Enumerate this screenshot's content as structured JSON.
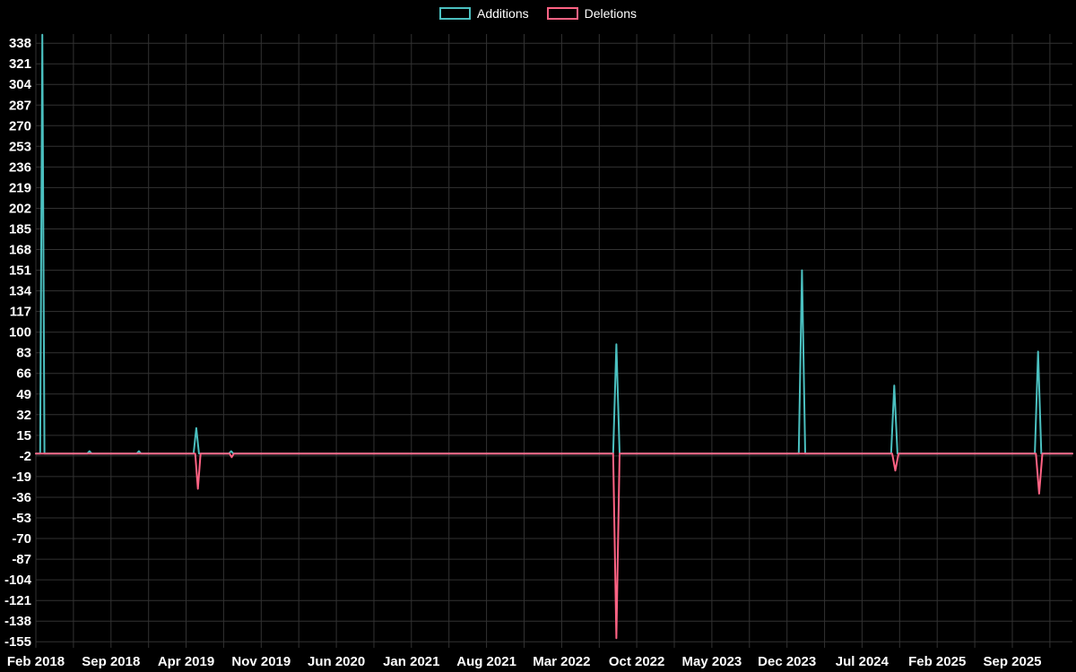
{
  "legend": {
    "additions_label": "Additions",
    "deletions_label": "Deletions"
  },
  "chart_data": {
    "type": "line",
    "title": "",
    "legend_position": "top-center",
    "grid": true,
    "background": "#000000",
    "colors": {
      "additions": "#4bc0c0",
      "deletions": "#ff6384",
      "grid": "#323232",
      "tick_text": "#ffffff"
    },
    "xlim_months": [
      0,
      96.6
    ],
    "ylim": [
      -160,
      345.5
    ],
    "x_grid_step_months": 3.5,
    "y_ticks": [
      338,
      321,
      304,
      287,
      270,
      253,
      236,
      219,
      202,
      185,
      168,
      151,
      134,
      117,
      100,
      83,
      66,
      49,
      32,
      15,
      -2,
      -19,
      -36,
      -53,
      -70,
      -87,
      -104,
      -121,
      -138,
      -155
    ],
    "x_ticks": [
      {
        "label": "Feb 2018",
        "month": 0
      },
      {
        "label": "Sep 2018",
        "month": 7
      },
      {
        "label": "Apr 2019",
        "month": 14
      },
      {
        "label": "Nov 2019",
        "month": 21
      },
      {
        "label": "Jun 2020",
        "month": 28
      },
      {
        "label": "Jan 2021",
        "month": 35
      },
      {
        "label": "Aug 2021",
        "month": 42
      },
      {
        "label": "Mar 2022",
        "month": 49
      },
      {
        "label": "Oct 2022",
        "month": 56
      },
      {
        "label": "May 2023",
        "month": 63
      },
      {
        "label": "Dec 2023",
        "month": 70
      },
      {
        "label": "Jul 2024",
        "month": 77
      },
      {
        "label": "Feb 2025",
        "month": 84
      },
      {
        "label": "Sep 2025",
        "month": 91
      }
    ],
    "series": [
      {
        "name": "Additions",
        "color": "#4bc0c0",
        "points": [
          [
            0,
            0
          ],
          [
            0.4,
            0
          ],
          [
            0.6,
            345
          ],
          [
            0.8,
            0
          ],
          [
            4.8,
            0
          ],
          [
            5.0,
            2
          ],
          [
            5.2,
            0
          ],
          [
            9.4,
            0
          ],
          [
            9.6,
            2
          ],
          [
            9.8,
            0
          ],
          [
            14.7,
            0
          ],
          [
            14.95,
            21
          ],
          [
            15.2,
            0
          ],
          [
            18.0,
            0
          ],
          [
            18.2,
            2
          ],
          [
            18.4,
            0
          ],
          [
            53.8,
            0
          ],
          [
            54.1,
            90
          ],
          [
            54.4,
            0
          ],
          [
            71.1,
            0
          ],
          [
            71.4,
            151
          ],
          [
            71.7,
            0
          ],
          [
            79.7,
            0
          ],
          [
            80.0,
            56
          ],
          [
            80.3,
            0
          ],
          [
            93.1,
            0
          ],
          [
            93.4,
            84
          ],
          [
            93.7,
            0
          ],
          [
            96.6,
            0
          ]
        ]
      },
      {
        "name": "Deletions",
        "color": "#ff6384",
        "points": [
          [
            0,
            0
          ],
          [
            14.85,
            0
          ],
          [
            15.1,
            -29
          ],
          [
            15.35,
            0
          ],
          [
            18.05,
            0
          ],
          [
            18.25,
            -3
          ],
          [
            18.45,
            0
          ],
          [
            53.8,
            0
          ],
          [
            54.1,
            -152
          ],
          [
            54.4,
            0
          ],
          [
            79.8,
            0
          ],
          [
            80.1,
            -14
          ],
          [
            80.4,
            0
          ],
          [
            93.2,
            0
          ],
          [
            93.5,
            -33
          ],
          [
            93.8,
            0
          ],
          [
            96.6,
            0
          ]
        ]
      }
    ]
  }
}
